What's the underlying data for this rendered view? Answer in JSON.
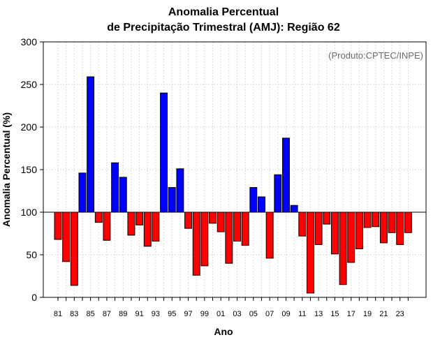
{
  "chart_data": {
    "type": "bar",
    "title": [
      "Anomalia Percentual",
      "de Precipitação Trimestral (AMJ): Região 62"
    ],
    "credit": "(Produto:CPTEC/INPE)",
    "xlabel": "Ano",
    "ylabel": "Anomalia Percentual (%)",
    "ylim": [
      0,
      300
    ],
    "yticks": [
      0,
      50,
      100,
      150,
      200,
      250,
      300
    ],
    "baseline": 100,
    "grid": true,
    "colors": {
      "above": "#0000ff",
      "below": "#ff0000"
    },
    "categories": [
      "81",
      "82",
      "83",
      "84",
      "85",
      "86",
      "87",
      "88",
      "89",
      "90",
      "91",
      "92",
      "93",
      "94",
      "95",
      "96",
      "97",
      "98",
      "99",
      "00",
      "01",
      "02",
      "03",
      "04",
      "05",
      "06",
      "07",
      "08",
      "09",
      "10",
      "11",
      "12",
      "13",
      "14",
      "15",
      "16",
      "17",
      "18",
      "19",
      "20",
      "21",
      "22",
      "23",
      "24"
    ],
    "xtick_labels": [
      "81",
      "83",
      "85",
      "87",
      "89",
      "91",
      "93",
      "95",
      "97",
      "99",
      "01",
      "03",
      "05",
      "07",
      "09",
      "11",
      "13",
      "15",
      "17",
      "19",
      "21",
      "23"
    ],
    "values": [
      68,
      42,
      14,
      146,
      259,
      88,
      67,
      158,
      141,
      73,
      85,
      60,
      66,
      240,
      129,
      151,
      81,
      26,
      37,
      87,
      77,
      40,
      66,
      61,
      129,
      118,
      46,
      144,
      187,
      108,
      72,
      5,
      62,
      86,
      51,
      15,
      41,
      57,
      82,
      83,
      64,
      76,
      62,
      76
    ]
  }
}
